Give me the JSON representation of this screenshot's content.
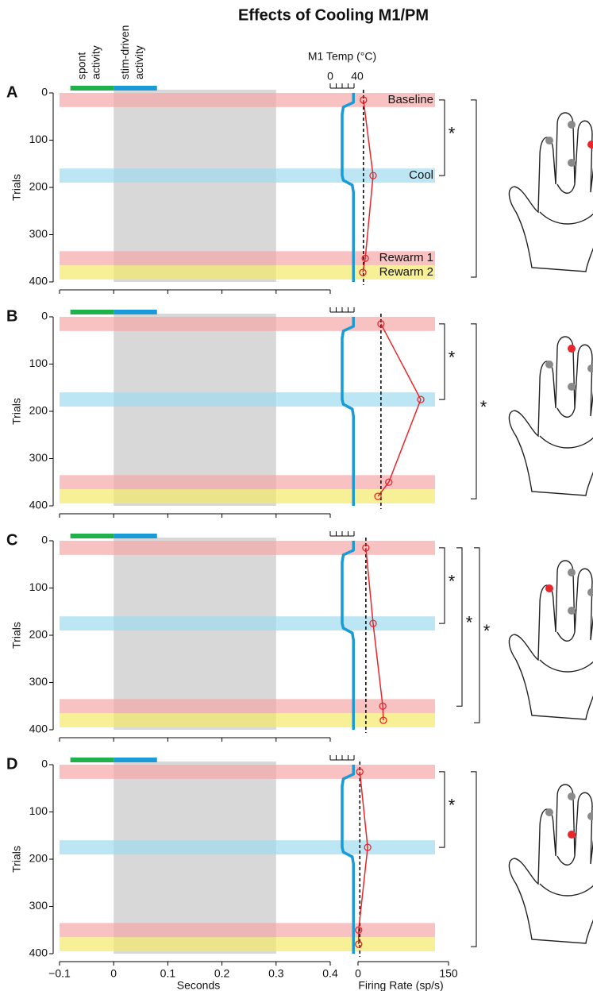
{
  "title": "Effects of Cooling M1/PM",
  "epochs": [
    {
      "lines": [
        "spont",
        "activity"
      ],
      "from": -0.08,
      "to": 0,
      "color": "#1fb14a"
    },
    {
      "lines": [
        "stim-driven",
        "activity"
      ],
      "from": 0,
      "to": 0.08,
      "color": "#1a9ad6"
    }
  ],
  "stim_window": [
    0,
    0.3
  ],
  "temp_label": "M1 Temp (°C)",
  "conditions": [
    {
      "name": "Baseline",
      "from": 0,
      "to": 30,
      "color": "#f7a8a8"
    },
    {
      "name": "Cool",
      "from": 160,
      "to": 190,
      "color": "#9fdcf0"
    },
    {
      "name": "Rewarm 1",
      "from": 335,
      "to": 365,
      "color": "#f7a8a8"
    },
    {
      "name": "Rewarm 2",
      "from": 365,
      "to": 395,
      "color": "#f5ea6a"
    }
  ],
  "chart_data": [
    {
      "type": "raster",
      "label": "A",
      "ylabel": "Trials",
      "ylim": [
        0,
        400
      ],
      "yticks": [
        0,
        100,
        200,
        300,
        400
      ],
      "xlim": [
        -0.1,
        0.4
      ],
      "xticks": [
        -0.1,
        0,
        0.1,
        0.2,
        0.3,
        0.4
      ],
      "temp": {
        "xlim": [
          0,
          40
        ],
        "xticks": [
          0,
          10,
          20,
          30,
          40
        ],
        "trials": [
          0,
          20,
          30,
          45,
          175,
          185,
          195,
          210,
          400
        ],
        "values": [
          39,
          39,
          22,
          20,
          20,
          22,
          37,
          39,
          39
        ],
        "color": "#1a9ad6"
      },
      "rate": {
        "xlim": [
          0,
          150
        ],
        "trials": [
          15,
          175,
          350,
          380
        ],
        "values": [
          9,
          25,
          12,
          8
        ],
        "baseline": 9,
        "color": "#e8262b"
      },
      "significance": [
        {
          "from": 15,
          "to": 175,
          "label": "*"
        },
        {
          "from": 15,
          "to": 390
        }
      ]
    },
    {
      "type": "raster",
      "label": "B",
      "ylabel": "Trials",
      "ylim": [
        0,
        400
      ],
      "yticks": [
        0,
        100,
        200,
        300,
        400
      ],
      "xlim": [
        -0.1,
        0.4
      ],
      "xticks": [
        -0.1,
        0,
        0.1,
        0.2,
        0.3,
        0.4
      ],
      "temp": {
        "xlim": [
          0,
          40
        ],
        "xticks": [
          0,
          10,
          20,
          30,
          40
        ],
        "trials": [
          0,
          20,
          30,
          45,
          175,
          185,
          195,
          210,
          400
        ],
        "values": [
          39,
          39,
          22,
          20,
          20,
          22,
          37,
          39,
          39
        ],
        "color": "#1a9ad6"
      },
      "rate": {
        "xlim": [
          0,
          150
        ],
        "trials": [
          15,
          175,
          350,
          380
        ],
        "values": [
          38,
          104,
          51,
          33
        ],
        "baseline": 38,
        "color": "#e8262b"
      },
      "significance": [
        {
          "from": 15,
          "to": 175,
          "label": "*"
        },
        {
          "from": 15,
          "to": 385,
          "label": "*"
        }
      ]
    },
    {
      "type": "raster",
      "label": "C",
      "ylabel": "Trials",
      "ylim": [
        0,
        400
      ],
      "yticks": [
        0,
        100,
        200,
        300,
        400
      ],
      "xlim": [
        -0.1,
        0.4
      ],
      "xticks": [
        -0.1,
        0,
        0.1,
        0.2,
        0.3,
        0.4
      ],
      "temp": {
        "xlim": [
          0,
          40
        ],
        "xticks": [
          0,
          10,
          20,
          30,
          40
        ],
        "trials": [
          0,
          20,
          30,
          45,
          175,
          185,
          195,
          210,
          400
        ],
        "values": [
          39,
          39,
          22,
          20,
          20,
          22,
          37,
          39,
          39
        ],
        "color": "#1a9ad6"
      },
      "rate": {
        "xlim": [
          0,
          150
        ],
        "trials": [
          15,
          175,
          350,
          380
        ],
        "values": [
          13,
          25,
          41,
          42
        ],
        "baseline": 13,
        "color": "#e8262b"
      },
      "significance": [
        {
          "from": 15,
          "to": 175,
          "label": "*"
        },
        {
          "from": 15,
          "to": 350,
          "label": "*"
        },
        {
          "from": 15,
          "to": 385,
          "label": "*"
        }
      ]
    },
    {
      "type": "raster",
      "label": "D",
      "ylabel": "Trials",
      "xlabel": "Seconds",
      "ylim": [
        0,
        400
      ],
      "yticks": [
        0,
        100,
        200,
        300,
        400
      ],
      "xlim": [
        -0.1,
        0.4
      ],
      "xticks": [
        {
          "value": -0.1,
          "label": "−0.1"
        },
        0,
        0.1,
        0.2,
        0.3,
        0.4
      ],
      "temp": {
        "xlim": [
          0,
          40
        ],
        "xticks": [
          0,
          10,
          20,
          30,
          40
        ],
        "trials": [
          0,
          20,
          30,
          45,
          175,
          185,
          195,
          210,
          400
        ],
        "values": [
          39,
          39,
          22,
          20,
          20,
          22,
          37,
          39,
          39
        ],
        "color": "#1a9ad6"
      },
      "rate": {
        "xlabel": "Firing Rate (sp/s)",
        "xlim": [
          0,
          150
        ],
        "xticks": [
          0,
          150
        ],
        "trials": [
          15,
          175,
          350,
          380
        ],
        "values": [
          3,
          16,
          1,
          1
        ],
        "baseline": 3,
        "color": "#e8262b"
      },
      "significance": [
        {
          "from": 15,
          "to": 175,
          "label": "*"
        },
        {
          "from": 15,
          "to": 385
        }
      ]
    }
  ]
}
